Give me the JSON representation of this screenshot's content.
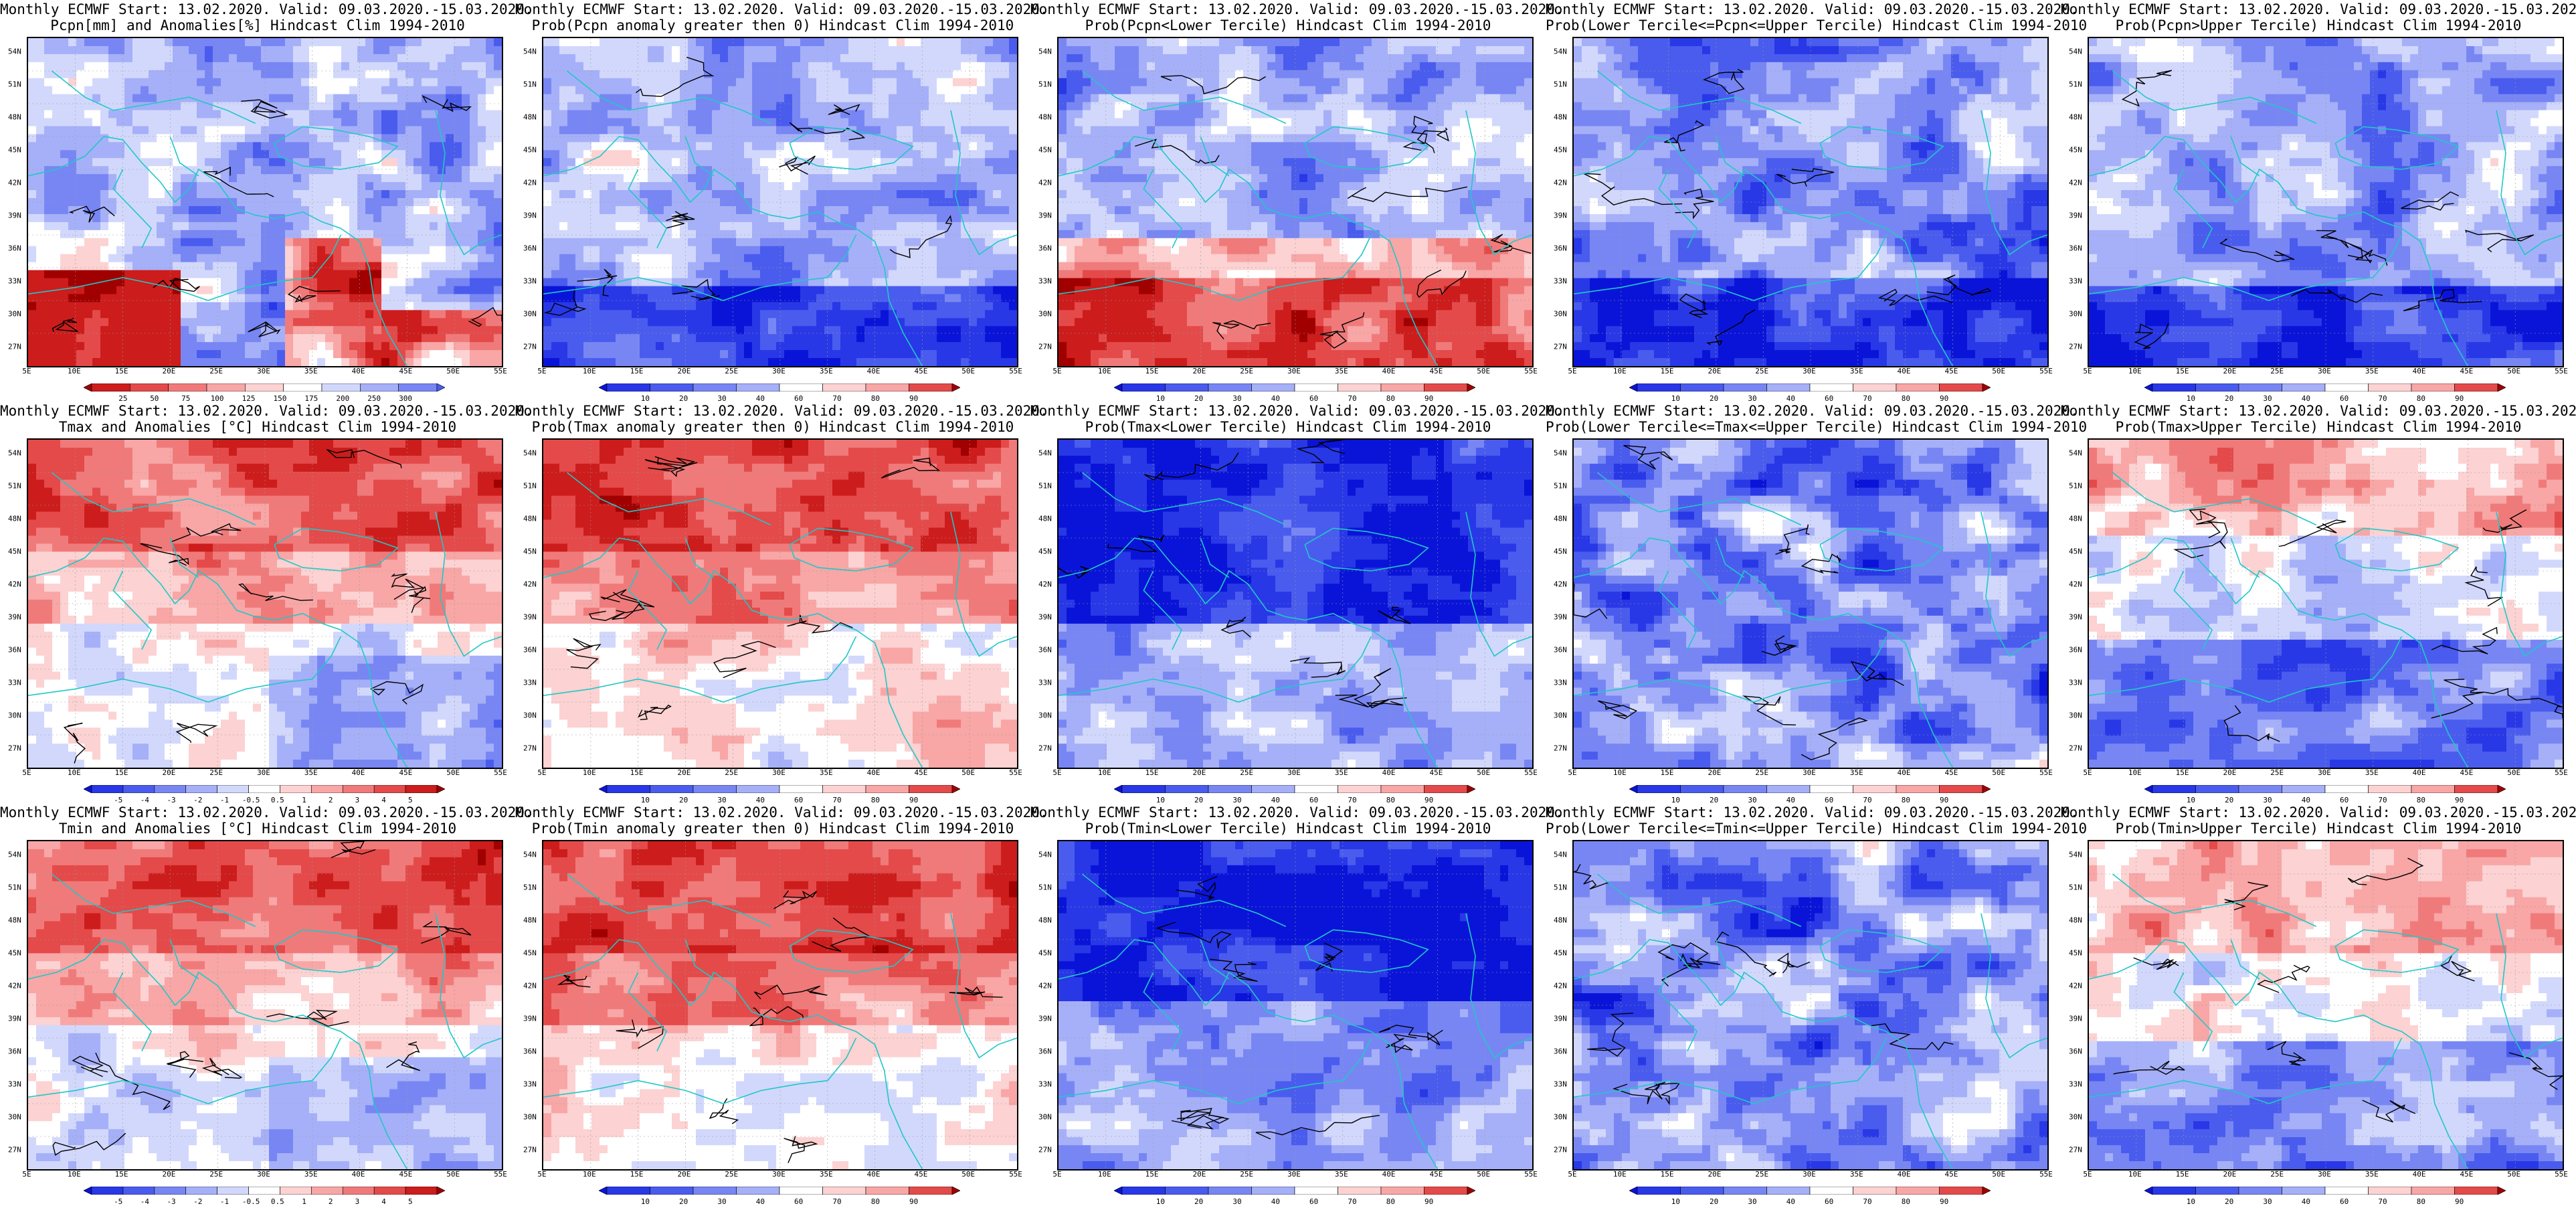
{
  "header": {
    "text_line1": "Monthly ECMWF Start: 13.02.2020. Valid: 09.03.2020.-15.03.2020."
  },
  "lat_labels": [
    "54N",
    "51N",
    "48N",
    "45N",
    "42N",
    "39N",
    "36N",
    "33N",
    "30N",
    "27N"
  ],
  "lon_labels": [
    "5E",
    "10E",
    "15E",
    "20E",
    "25E",
    "30E",
    "35E",
    "40E",
    "45E",
    "50E",
    "55E"
  ],
  "colors": {
    "blue_dark": "#0a14e0",
    "blue_mid": "#5a6cf0",
    "blue_light": "#c8d0fa",
    "white": "#ffffff",
    "red_light": "#f8c4c4",
    "red_mid": "#ec5a5a",
    "red_dark": "#b40000",
    "coast": "#20c8c8",
    "contour": "#000000"
  },
  "panels": [
    {
      "row": 0,
      "col": 0,
      "title2": "Pcpn[mm] and Anomalies[%] Hindcast Clim 1994-2010",
      "scheme": "pcpn_anom",
      "ticks": [
        "25",
        "50",
        "75",
        "100",
        "125",
        "150",
        "175",
        "200",
        "250",
        "300"
      ]
    },
    {
      "row": 0,
      "col": 1,
      "title2": "Prob(Pcpn anomaly greater then 0) Hindcast Clim 1994-2010",
      "scheme": "prob_gt0_pcpn",
      "ticks": [
        "10",
        "20",
        "30",
        "40",
        "60",
        "70",
        "80",
        "90"
      ]
    },
    {
      "row": 0,
      "col": 2,
      "title2": "Prob(Pcpn<Lower Tercile) Hindcast Clim 1994-2010",
      "scheme": "prob_lower_pcpn",
      "ticks": [
        "10",
        "20",
        "30",
        "40",
        "60",
        "70",
        "80",
        "90"
      ]
    },
    {
      "row": 0,
      "col": 3,
      "title2": "Prob(Lower Tercile<=Pcpn<=Upper Tercile) Hindcast Clim 1994-2010",
      "scheme": "prob_mid_pcpn",
      "ticks": [
        "10",
        "20",
        "30",
        "40",
        "60",
        "70",
        "80",
        "90"
      ]
    },
    {
      "row": 0,
      "col": 4,
      "title2": "Prob(Pcpn>Upper Tercile) Hindcast Clim 1994-2010",
      "scheme": "prob_upper_pcpn",
      "ticks": [
        "10",
        "20",
        "30",
        "40",
        "60",
        "70",
        "80",
        "90"
      ]
    },
    {
      "row": 1,
      "col": 0,
      "title2": "Tmax and Anomalies [°C] Hindcast Clim 1994-2010",
      "scheme": "temp_anom",
      "ticks": [
        "-5",
        "-4",
        "-3",
        "-2",
        "-1",
        "-0.5",
        "0.5",
        "1",
        "2",
        "3",
        "4",
        "5"
      ]
    },
    {
      "row": 1,
      "col": 1,
      "title2": "Prob(Tmax anomaly greater then 0) Hindcast Clim 1994-2010",
      "scheme": "prob_gt0_temp",
      "ticks": [
        "10",
        "20",
        "30",
        "40",
        "60",
        "70",
        "80",
        "90"
      ]
    },
    {
      "row": 1,
      "col": 2,
      "title2": "Prob(Tmax<Lower Tercile) Hindcast Clim 1994-2010",
      "scheme": "prob_lower_temp",
      "ticks": [
        "10",
        "20",
        "30",
        "40",
        "60",
        "70",
        "80",
        "90"
      ]
    },
    {
      "row": 1,
      "col": 3,
      "title2": "Prob(Lower Tercile<=Tmax<=Upper Tercile) Hindcast Clim 1994-2010",
      "scheme": "prob_mid_temp",
      "ticks": [
        "10",
        "20",
        "30",
        "40",
        "60",
        "70",
        "80",
        "90"
      ]
    },
    {
      "row": 1,
      "col": 4,
      "title2": "Prob(Tmax>Upper Tercile) Hindcast Clim 1994-2010",
      "scheme": "prob_upper_temp",
      "ticks": [
        "10",
        "20",
        "30",
        "40",
        "60",
        "70",
        "80",
        "90"
      ]
    },
    {
      "row": 2,
      "col": 0,
      "title2": "Tmin and Anomalies [°C] Hindcast Clim 1994-2010",
      "scheme": "temp_anom",
      "ticks": [
        "-5",
        "-4",
        "-3",
        "-2",
        "-1",
        "-0.5",
        "0.5",
        "1",
        "2",
        "3",
        "4",
        "5"
      ]
    },
    {
      "row": 2,
      "col": 1,
      "title2": "Prob(Tmin anomaly greater then 0) Hindcast Clim 1994-2010",
      "scheme": "prob_gt0_temp",
      "ticks": [
        "10",
        "20",
        "30",
        "40",
        "60",
        "70",
        "80",
        "90"
      ]
    },
    {
      "row": 2,
      "col": 2,
      "title2": "Prob(Tmin<Lower Tercile) Hindcast Clim 1994-2010",
      "scheme": "prob_lower_temp2",
      "ticks": [
        "10",
        "20",
        "30",
        "40",
        "60",
        "70",
        "80",
        "90"
      ]
    },
    {
      "row": 2,
      "col": 3,
      "title2": "Prob(Lower Tercile<=Tmin<=Upper Tercile) Hindcast Clim 1994-2010",
      "scheme": "prob_mid_temp",
      "ticks": [
        "10",
        "20",
        "30",
        "40",
        "60",
        "70",
        "80",
        "90"
      ]
    },
    {
      "row": 2,
      "col": 4,
      "title2": "Prob(Tmin>Upper Tercile) Hindcast Clim 1994-2010",
      "scheme": "prob_upper_temp2",
      "ticks": [
        "10",
        "20",
        "30",
        "40",
        "60",
        "70",
        "80",
        "90"
      ]
    }
  ]
}
